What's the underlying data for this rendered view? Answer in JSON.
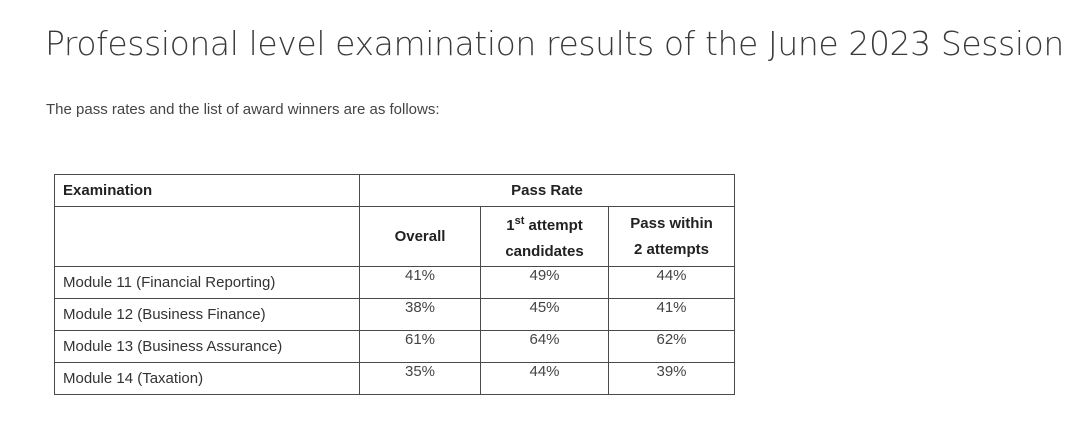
{
  "page": {
    "title": "Professional level examination results of the June 2023 Session",
    "intro": "The pass rates and the list of award winners are as follows:"
  },
  "table": {
    "header": {
      "examination": "Examination",
      "pass_rate": "Pass Rate",
      "overall": "Overall",
      "first_attempt_ordinal": "1",
      "first_attempt_sup": "st",
      "first_attempt_rest": " attempt",
      "first_attempt_line2": "candidates",
      "within_line1": "Pass within",
      "within_line2": "2 attempts"
    },
    "rows": [
      {
        "module": "Module 11 (Financial Reporting)",
        "overall": "41%",
        "first_attempt": "49%",
        "within_two": "44%"
      },
      {
        "module": "Module 12 (Business Finance)",
        "overall": "38%",
        "first_attempt": "45%",
        "within_two": "41%"
      },
      {
        "module": "Module 13 (Business Assurance)",
        "overall": "61%",
        "first_attempt": "64%",
        "within_two": "62%"
      },
      {
        "module": "Module 14 (Taxation)",
        "overall": "35%",
        "first_attempt": "44%",
        "within_two": "39%"
      }
    ]
  }
}
